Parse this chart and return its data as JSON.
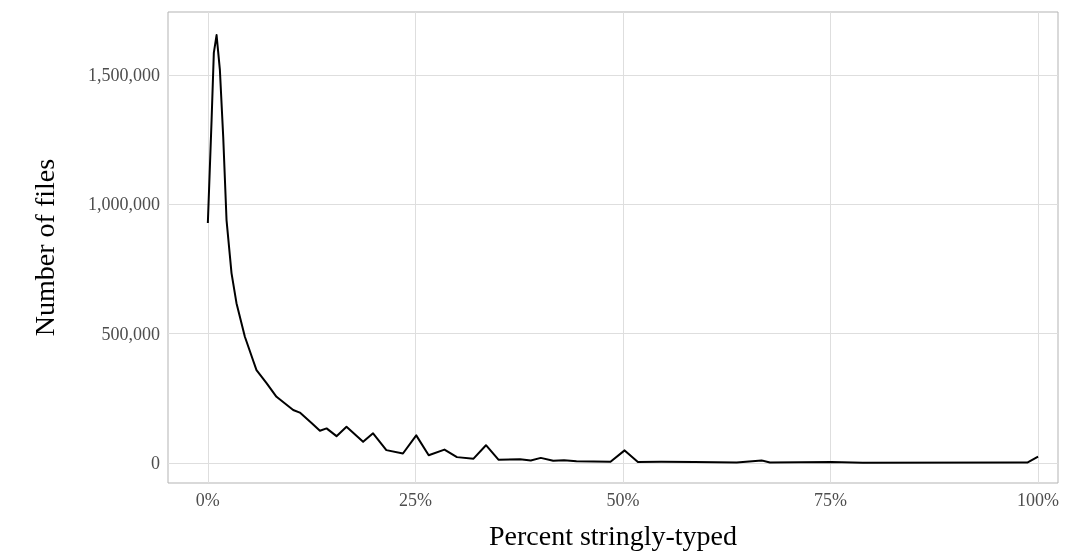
{
  "chart_data": {
    "type": "line",
    "xlabel": "Percent stringly-typed",
    "ylabel": "Number of files",
    "xlim": [
      -4.8,
      102.4
    ],
    "ylim": [
      -77000,
      1743000
    ],
    "xticks": [
      {
        "value": 0,
        "label": "0%"
      },
      {
        "value": 25,
        "label": "25%"
      },
      {
        "value": 50,
        "label": "50%"
      },
      {
        "value": 75,
        "label": "75%"
      },
      {
        "value": 100,
        "label": "100%"
      }
    ],
    "yticks": [
      {
        "value": 0,
        "label": "0"
      },
      {
        "value": 500000,
        "label": "500,000"
      },
      {
        "value": 1000000,
        "label": "1,000,000"
      },
      {
        "value": 1500000,
        "label": "1,500,000"
      }
    ],
    "grid": true,
    "marker": "none",
    "line_style": "solid",
    "series": [
      {
        "color": "#000000",
        "x": [
          0,
          0.45,
          0.72,
          1.05,
          1.45,
          1.85,
          2.25,
          2.85,
          3.45,
          4.46,
          5.86,
          7.07,
          8.27,
          10.28,
          11.08,
          12.49,
          13.5,
          14.3,
          15.5,
          16.7,
          18.7,
          19.9,
          21.5,
          23.5,
          25.1,
          26.6,
          28.5,
          30.0,
          32.0,
          33.5,
          35.0,
          37.6,
          38.9,
          40.1,
          41.6,
          42.9,
          44.4,
          48.5,
          50.2,
          51.8,
          54.6,
          58.6,
          63.7,
          66.7,
          67.7,
          75.1,
          78.9,
          98.7,
          100
        ],
        "values": [
          928000,
          1326000,
          1585000,
          1654000,
          1519000,
          1261000,
          939000,
          734000,
          618000,
          488000,
          359000,
          309000,
          256000,
          205000,
          195000,
          155000,
          125000,
          134000,
          104000,
          140000,
          82000,
          115000,
          50000,
          37000,
          107000,
          30000,
          52000,
          23000,
          17000,
          69000,
          13000,
          15000,
          10000,
          20000,
          9000,
          11000,
          7000,
          5000,
          49000,
          4000,
          5000,
          4000,
          2000,
          10000,
          2000,
          4000,
          1000,
          2000,
          25000
        ]
      }
    ]
  }
}
